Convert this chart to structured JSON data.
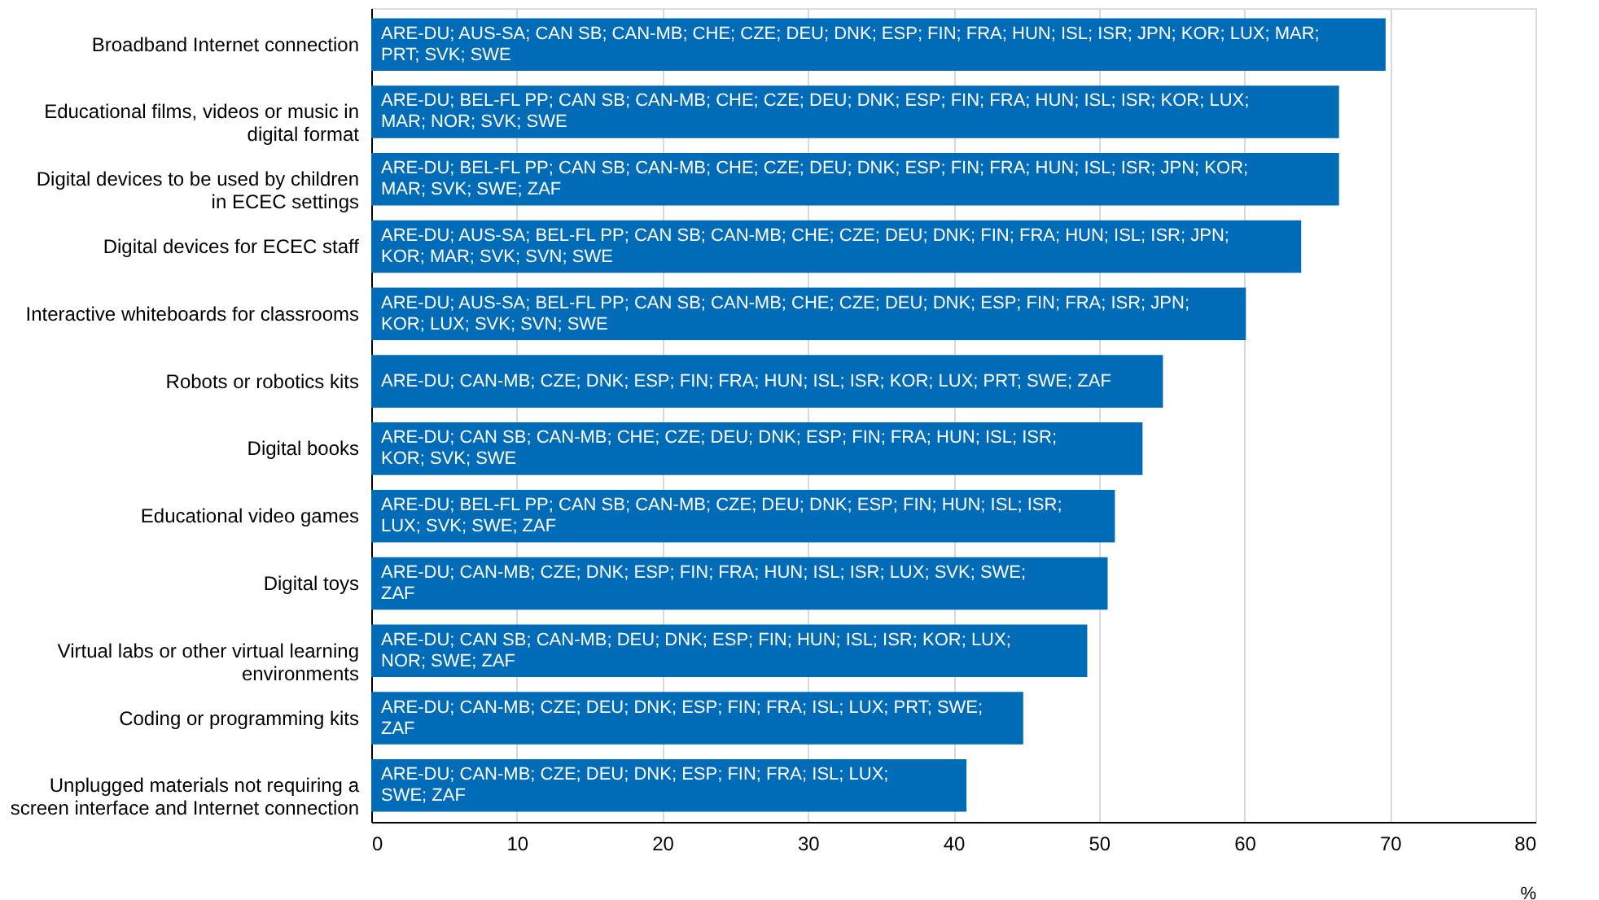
{
  "chart_data": {
    "type": "bar",
    "orientation": "horizontal",
    "categories": [
      "Broadband Internet connection",
      "Educational films, videos or music in digital format",
      "Digital devices to be used by children in ECEC settings",
      "Digital devices for ECEC staff",
      "Interactive whiteboards for classrooms",
      "Robots or robotics kits",
      "Digital books",
      "Educational video games",
      "Digital toys",
      "Virtual labs or other virtual learning environments",
      "Coding or programming kits",
      "Unplugged materials not requiring a screen interface and Internet connection"
    ],
    "values": [
      69.7,
      66.5,
      66.5,
      63.9,
      60.1,
      54.4,
      53.0,
      51.1,
      50.6,
      49.2,
      44.8,
      40.9
    ],
    "value_labels": [
      "ARE-DU; AUS-SA; CAN SB; CAN-MB; CHE; CZE; DEU; DNK; ESP; FIN; FRA; HUN; ISL; ISR; JPN; KOR; LUX; MAR; PRT; SVK; SWE",
      "ARE-DU; BEL-FL PP; CAN SB; CAN-MB; CHE; CZE; DEU; DNK; ESP; FIN; FRA; HUN; ISL; ISR; KOR; LUX; MAR; NOR; SVK; SWE",
      "ARE-DU; BEL-FL PP; CAN SB; CAN-MB; CHE; CZE; DEU; DNK; ESP; FIN; FRA; HUN; ISL; ISR; JPN; KOR; MAR; SVK; SWE; ZAF",
      "ARE-DU; AUS-SA; BEL-FL PP; CAN SB; CAN-MB; CHE; CZE; DEU; DNK; FIN; FRA; HUN; ISL; ISR; JPN; KOR; MAR; SVK; SVN; SWE",
      "ARE-DU; AUS-SA; BEL-FL PP; CAN SB; CAN-MB; CHE; CZE; DEU; DNK; ESP; FIN; FRA; ISR; JPN; KOR; LUX; SVK; SVN; SWE",
      "ARE-DU; CAN-MB; CZE; DNK; ESP; FIN; FRA; HUN; ISL; ISR; KOR; LUX; PRT; SWE; ZAF",
      "ARE-DU; CAN SB; CAN-MB; CHE; CZE; DEU; DNK; ESP; FIN; FRA; HUN; ISL; ISR; KOR; SVK; SWE",
      "ARE-DU; BEL-FL PP; CAN SB; CAN-MB; CZE; DEU; DNK; ESP; FIN; HUN; ISL; ISR; LUX; SVK; SWE; ZAF",
      "ARE-DU; CAN-MB; CZE; DNK; ESP; FIN; FRA; HUN; ISL; ISR; LUX; SVK; SWE; ZAF",
      "ARE-DU; CAN SB; CAN-MB; DEU; DNK; ESP; FIN; HUN; ISL; ISR; KOR; LUX; NOR; SWE; ZAF",
      "ARE-DU; CAN-MB; CZE; DEU; DNK; ESP; FIN; FRA; ISL; LUX; PRT; SWE; ZAF",
      "ARE-DU; CAN-MB; CZE; DEU; DNK; ESP; FIN; FRA; ISL; LUX; SWE; ZAF"
    ],
    "color": "#006bb6",
    "xlabel": "%",
    "xlim": [
      0,
      80
    ],
    "xticks": [
      0,
      10,
      20,
      30,
      40,
      50,
      60,
      70,
      80
    ],
    "grid": "x"
  }
}
